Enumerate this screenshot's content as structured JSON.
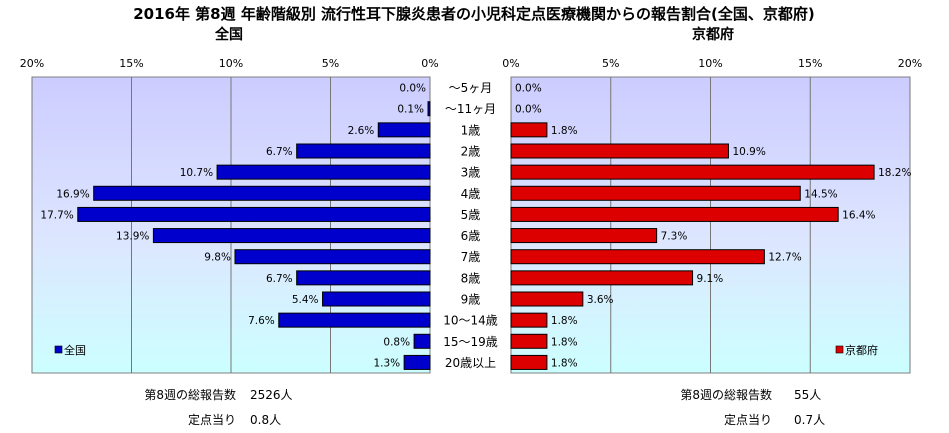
{
  "chart_data": {
    "type": "bar",
    "title": "2016年 第8週 年齢階級別 流行性耳下腺炎患者の小児科定点医療機関からの報告割合(全国、京都府)",
    "categories": [
      "～5ヶ月",
      "～11ヶ月",
      "1歳",
      "2歳",
      "3歳",
      "4歳",
      "5歳",
      "6歳",
      "7歳",
      "8歳",
      "9歳",
      "10～14歳",
      "15～19歳",
      "20歳以上"
    ],
    "xlim": [
      0,
      20
    ],
    "xticks": [
      "0%",
      "5%",
      "10%",
      "15%",
      "20%"
    ],
    "grid": true,
    "series": [
      {
        "name": "全国",
        "panel_title": "全国",
        "legend": "全国",
        "color": "#0000cc",
        "direction": "left",
        "values": [
          0.0,
          0.1,
          2.6,
          6.7,
          10.7,
          16.9,
          17.7,
          13.9,
          9.8,
          6.7,
          5.4,
          7.6,
          0.8,
          1.3
        ],
        "labels": [
          "0.0%",
          "0.1%",
          "2.6%",
          "6.7%",
          "10.7%",
          "16.9%",
          "17.7%",
          "13.9%",
          "9.8%",
          "6.7%",
          "5.4%",
          "7.6%",
          "0.8%",
          "1.3%"
        ],
        "footer": {
          "total_label": "第8週の総報告数",
          "total_value": "2526人",
          "per_site_label": "定点当り",
          "per_site_value": "0.8人"
        }
      },
      {
        "name": "京都府",
        "panel_title": "京都府",
        "legend": "京都府",
        "color": "#dd0000",
        "direction": "right",
        "values": [
          0.0,
          0.0,
          1.8,
          10.9,
          18.2,
          14.5,
          16.4,
          7.3,
          12.7,
          9.1,
          3.6,
          1.8,
          1.8,
          1.8
        ],
        "labels": [
          "0.0%",
          "0.0%",
          "1.8%",
          "10.9%",
          "18.2%",
          "14.5%",
          "16.4%",
          "7.3%",
          "12.7%",
          "9.1%",
          "3.6%",
          "1.8%",
          "1.8%",
          "1.8%"
        ],
        "footer": {
          "total_label": "第8週の総報告数",
          "total_value": "55人",
          "per_site_label": "定点当り",
          "per_site_value": "0.7人"
        }
      }
    ]
  }
}
